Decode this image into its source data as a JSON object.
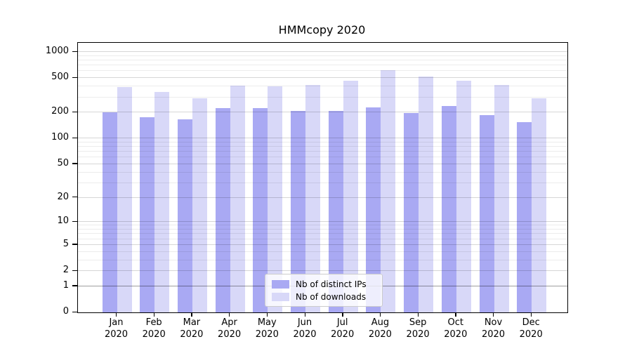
{
  "title": "HMMcopy 2020",
  "chart_data": {
    "type": "bar",
    "title": "HMMcopy 2020",
    "categories": [
      "Jan 2020",
      "Feb 2020",
      "Mar 2020",
      "Apr 2020",
      "May 2020",
      "Jun 2020",
      "Jul 2020",
      "Aug 2020",
      "Sep 2020",
      "Oct 2020",
      "Nov 2020",
      "Dec 2020"
    ],
    "series": [
      {
        "name": "Nb of distinct IPs",
        "color": "#a9a9f3",
        "values": [
          200,
          176,
          166,
          226,
          225,
          207,
          207,
          230,
          196,
          240,
          186,
          154
        ]
      },
      {
        "name": "Nb of downloads",
        "color": "#d8d8f8",
        "values": [
          392,
          345,
          291,
          408,
          405,
          415,
          468,
          620,
          519,
          470,
          415,
          291
        ]
      }
    ],
    "xlabel": "",
    "ylabel": "",
    "yscale": "log1p",
    "ylim": [
      0,
      1270
    ],
    "yticks": [
      0,
      1,
      2,
      5,
      10,
      20,
      50,
      100,
      200,
      500,
      1000
    ],
    "minor_yticks": [
      3,
      4,
      6,
      7,
      8,
      9,
      30,
      40,
      60,
      70,
      80,
      90,
      300,
      400,
      600,
      700,
      800,
      900
    ],
    "grid": "both, horizontal only, drawn over bars",
    "legend_position": "lower center"
  }
}
